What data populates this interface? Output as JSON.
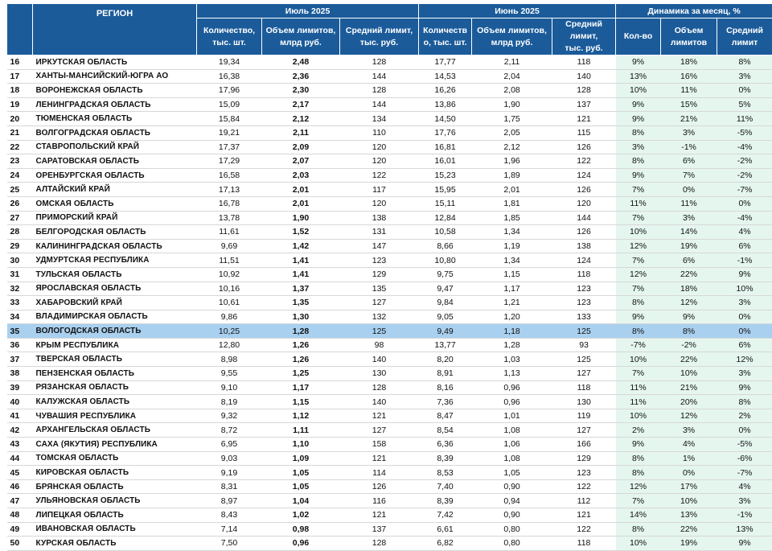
{
  "headers": {
    "region": "РЕГИОН",
    "july": "Июль 2025",
    "june": "Июнь 2025",
    "dynamics": "Динамика за месяц, %",
    "july_qty": "Количество,\nтыс. шт.",
    "july_vol": "Объем лимитов,\nмлрд руб.",
    "july_avg": "Средний лимит,\nтыс. руб.",
    "june_qty": "Количеств\nо, тыс. шт.",
    "june_vol": "Объем лимитов,\nмлрд руб.",
    "june_avg": "Средний лимит,\nтыс. руб.",
    "dyn_qty": "Кол-во",
    "dyn_vol": "Объем\nлимитов",
    "dyn_avg": "Средний\nлимит"
  },
  "highlight_color": "#a9d0ef",
  "header_color": "#1b5b9a",
  "dynamics_bg": "#e5f6ef",
  "rows": [
    {
      "n": "16",
      "region": "ИРКУТСКАЯ ОБЛАСТЬ",
      "q7": "19,34",
      "v7": "2,48",
      "a7": "128",
      "q6": "17,77",
      "v6": "2,11",
      "a6": "118",
      "dq": "9%",
      "dv": "18%",
      "da": "8%"
    },
    {
      "n": "17",
      "region": "ХАНТЫ-МАНСИЙСКИЙ-ЮГРА АО",
      "q7": "16,38",
      "v7": "2,36",
      "a7": "144",
      "q6": "14,53",
      "v6": "2,04",
      "a6": "140",
      "dq": "13%",
      "dv": "16%",
      "da": "3%"
    },
    {
      "n": "18",
      "region": "ВОРОНЕЖСКАЯ ОБЛАСТЬ",
      "q7": "17,96",
      "v7": "2,30",
      "a7": "128",
      "q6": "16,26",
      "v6": "2,08",
      "a6": "128",
      "dq": "10%",
      "dv": "11%",
      "da": "0%"
    },
    {
      "n": "19",
      "region": "ЛЕНИНГРАДСКАЯ ОБЛАСТЬ",
      "q7": "15,09",
      "v7": "2,17",
      "a7": "144",
      "q6": "13,86",
      "v6": "1,90",
      "a6": "137",
      "dq": "9%",
      "dv": "15%",
      "da": "5%"
    },
    {
      "n": "20",
      "region": "ТЮМЕНСКАЯ ОБЛАСТЬ",
      "q7": "15,84",
      "v7": "2,12",
      "a7": "134",
      "q6": "14,50",
      "v6": "1,75",
      "a6": "121",
      "dq": "9%",
      "dv": "21%",
      "da": "11%"
    },
    {
      "n": "21",
      "region": "ВОЛГОГРАДСКАЯ ОБЛАСТЬ",
      "q7": "19,21",
      "v7": "2,11",
      "a7": "110",
      "q6": "17,76",
      "v6": "2,05",
      "a6": "115",
      "dq": "8%",
      "dv": "3%",
      "da": "-5%"
    },
    {
      "n": "22",
      "region": "СТАВРОПОЛЬСКИЙ КРАЙ",
      "q7": "17,37",
      "v7": "2,09",
      "a7": "120",
      "q6": "16,81",
      "v6": "2,12",
      "a6": "126",
      "dq": "3%",
      "dv": "-1%",
      "da": "-4%"
    },
    {
      "n": "23",
      "region": "САРАТОВСКАЯ ОБЛАСТЬ",
      "q7": "17,29",
      "v7": "2,07",
      "a7": "120",
      "q6": "16,01",
      "v6": "1,96",
      "a6": "122",
      "dq": "8%",
      "dv": "6%",
      "da": "-2%"
    },
    {
      "n": "24",
      "region": "ОРЕНБУРГСКАЯ ОБЛАСТЬ",
      "q7": "16,58",
      "v7": "2,03",
      "a7": "122",
      "q6": "15,23",
      "v6": "1,89",
      "a6": "124",
      "dq": "9%",
      "dv": "7%",
      "da": "-2%"
    },
    {
      "n": "25",
      "region": "АЛТАЙСКИЙ КРАЙ",
      "q7": "17,13",
      "v7": "2,01",
      "a7": "117",
      "q6": "15,95",
      "v6": "2,01",
      "a6": "126",
      "dq": "7%",
      "dv": "0%",
      "da": "-7%"
    },
    {
      "n": "26",
      "region": "ОМСКАЯ ОБЛАСТЬ",
      "q7": "16,78",
      "v7": "2,01",
      "a7": "120",
      "q6": "15,11",
      "v6": "1,81",
      "a6": "120",
      "dq": "11%",
      "dv": "11%",
      "da": "0%"
    },
    {
      "n": "27",
      "region": "ПРИМОРСКИЙ КРАЙ",
      "q7": "13,78",
      "v7": "1,90",
      "a7": "138",
      "q6": "12,84",
      "v6": "1,85",
      "a6": "144",
      "dq": "7%",
      "dv": "3%",
      "da": "-4%"
    },
    {
      "n": "28",
      "region": "БЕЛГОРОДСКАЯ ОБЛАСТЬ",
      "q7": "11,61",
      "v7": "1,52",
      "a7": "131",
      "q6": "10,58",
      "v6": "1,34",
      "a6": "126",
      "dq": "10%",
      "dv": "14%",
      "da": "4%"
    },
    {
      "n": "29",
      "region": "КАЛИНИНГРАДСКАЯ ОБЛАСТЬ",
      "q7": "9,69",
      "v7": "1,42",
      "a7": "147",
      "q6": "8,66",
      "v6": "1,19",
      "a6": "138",
      "dq": "12%",
      "dv": "19%",
      "da": "6%"
    },
    {
      "n": "30",
      "region": "УДМУРТСКАЯ РЕСПУБЛИКА",
      "q7": "11,51",
      "v7": "1,41",
      "a7": "123",
      "q6": "10,80",
      "v6": "1,34",
      "a6": "124",
      "dq": "7%",
      "dv": "6%",
      "da": "-1%"
    },
    {
      "n": "31",
      "region": "ТУЛЬСКАЯ ОБЛАСТЬ",
      "q7": "10,92",
      "v7": "1,41",
      "a7": "129",
      "q6": "9,75",
      "v6": "1,15",
      "a6": "118",
      "dq": "12%",
      "dv": "22%",
      "da": "9%"
    },
    {
      "n": "32",
      "region": "ЯРОСЛАВСКАЯ ОБЛАСТЬ",
      "q7": "10,16",
      "v7": "1,37",
      "a7": "135",
      "q6": "9,47",
      "v6": "1,17",
      "a6": "123",
      "dq": "7%",
      "dv": "18%",
      "da": "10%"
    },
    {
      "n": "33",
      "region": "ХАБАРОВСКИЙ КРАЙ",
      "q7": "10,61",
      "v7": "1,35",
      "a7": "127",
      "q6": "9,84",
      "v6": "1,21",
      "a6": "123",
      "dq": "8%",
      "dv": "12%",
      "da": "3%"
    },
    {
      "n": "34",
      "region": "ВЛАДИМИРСКАЯ ОБЛАСТЬ",
      "q7": "9,86",
      "v7": "1,30",
      "a7": "132",
      "q6": "9,05",
      "v6": "1,20",
      "a6": "133",
      "dq": "9%",
      "dv": "9%",
      "da": "0%"
    },
    {
      "n": "35",
      "region": "ВОЛОГОДСКАЯ ОБЛАСТЬ",
      "q7": "10,25",
      "v7": "1,28",
      "a7": "125",
      "q6": "9,49",
      "v6": "1,18",
      "a6": "125",
      "dq": "8%",
      "dv": "8%",
      "da": "0%",
      "hl": true
    },
    {
      "n": "36",
      "region": "КРЫМ РЕСПУБЛИКА",
      "q7": "12,80",
      "v7": "1,26",
      "a7": "98",
      "q6": "13,77",
      "v6": "1,28",
      "a6": "93",
      "dq": "-7%",
      "dv": "-2%",
      "da": "6%"
    },
    {
      "n": "37",
      "region": "ТВЕРСКАЯ ОБЛАСТЬ",
      "q7": "8,98",
      "v7": "1,26",
      "a7": "140",
      "q6": "8,20",
      "v6": "1,03",
      "a6": "125",
      "dq": "10%",
      "dv": "22%",
      "da": "12%"
    },
    {
      "n": "38",
      "region": "ПЕНЗЕНСКАЯ ОБЛАСТЬ",
      "q7": "9,55",
      "v7": "1,25",
      "a7": "130",
      "q6": "8,91",
      "v6": "1,13",
      "a6": "127",
      "dq": "7%",
      "dv": "10%",
      "da": "3%"
    },
    {
      "n": "39",
      "region": "РЯЗАНСКАЯ ОБЛАСТЬ",
      "q7": "9,10",
      "v7": "1,17",
      "a7": "128",
      "q6": "8,16",
      "v6": "0,96",
      "a6": "118",
      "dq": "11%",
      "dv": "21%",
      "da": "9%"
    },
    {
      "n": "40",
      "region": "КАЛУЖСКАЯ ОБЛАСТЬ",
      "q7": "8,19",
      "v7": "1,15",
      "a7": "140",
      "q6": "7,36",
      "v6": "0,96",
      "a6": "130",
      "dq": "11%",
      "dv": "20%",
      "da": "8%"
    },
    {
      "n": "41",
      "region": "ЧУВАШИЯ РЕСПУБЛИКА",
      "q7": "9,32",
      "v7": "1,12",
      "a7": "121",
      "q6": "8,47",
      "v6": "1,01",
      "a6": "119",
      "dq": "10%",
      "dv": "12%",
      "da": "2%"
    },
    {
      "n": "42",
      "region": "АРХАНГЕЛЬСКАЯ ОБЛАСТЬ",
      "q7": "8,72",
      "v7": "1,11",
      "a7": "127",
      "q6": "8,54",
      "v6": "1,08",
      "a6": "127",
      "dq": "2%",
      "dv": "3%",
      "da": "0%"
    },
    {
      "n": "43",
      "region": "САХА (ЯКУТИЯ) РЕСПУБЛИКА",
      "q7": "6,95",
      "v7": "1,10",
      "a7": "158",
      "q6": "6,36",
      "v6": "1,06",
      "a6": "166",
      "dq": "9%",
      "dv": "4%",
      "da": "-5%"
    },
    {
      "n": "44",
      "region": "ТОМСКАЯ ОБЛАСТЬ",
      "q7": "9,03",
      "v7": "1,09",
      "a7": "121",
      "q6": "8,39",
      "v6": "1,08",
      "a6": "129",
      "dq": "8%",
      "dv": "1%",
      "da": "-6%"
    },
    {
      "n": "45",
      "region": "КИРОВСКАЯ ОБЛАСТЬ",
      "q7": "9,19",
      "v7": "1,05",
      "a7": "114",
      "q6": "8,53",
      "v6": "1,05",
      "a6": "123",
      "dq": "8%",
      "dv": "0%",
      "da": "-7%"
    },
    {
      "n": "46",
      "region": "БРЯНСКАЯ ОБЛАСТЬ",
      "q7": "8,31",
      "v7": "1,05",
      "a7": "126",
      "q6": "7,40",
      "v6": "0,90",
      "a6": "122",
      "dq": "12%",
      "dv": "17%",
      "da": "4%"
    },
    {
      "n": "47",
      "region": "УЛЬЯНОВСКАЯ ОБЛАСТЬ",
      "q7": "8,97",
      "v7": "1,04",
      "a7": "116",
      "q6": "8,39",
      "v6": "0,94",
      "a6": "112",
      "dq": "7%",
      "dv": "10%",
      "da": "3%"
    },
    {
      "n": "48",
      "region": "ЛИПЕЦКАЯ ОБЛАСТЬ",
      "q7": "8,43",
      "v7": "1,02",
      "a7": "121",
      "q6": "7,42",
      "v6": "0,90",
      "a6": "121",
      "dq": "14%",
      "dv": "13%",
      "da": "-1%"
    },
    {
      "n": "49",
      "region": "ИВАНОВСКАЯ ОБЛАСТЬ",
      "q7": "7,14",
      "v7": "0,98",
      "a7": "137",
      "q6": "6,61",
      "v6": "0,80",
      "a6": "122",
      "dq": "8%",
      "dv": "22%",
      "da": "13%"
    },
    {
      "n": "50",
      "region": "КУРСКАЯ ОБЛАСТЬ",
      "q7": "7,50",
      "v7": "0,96",
      "a7": "128",
      "q6": "6,82",
      "v6": "0,80",
      "a6": "118",
      "dq": "10%",
      "dv": "19%",
      "da": "9%"
    }
  ]
}
